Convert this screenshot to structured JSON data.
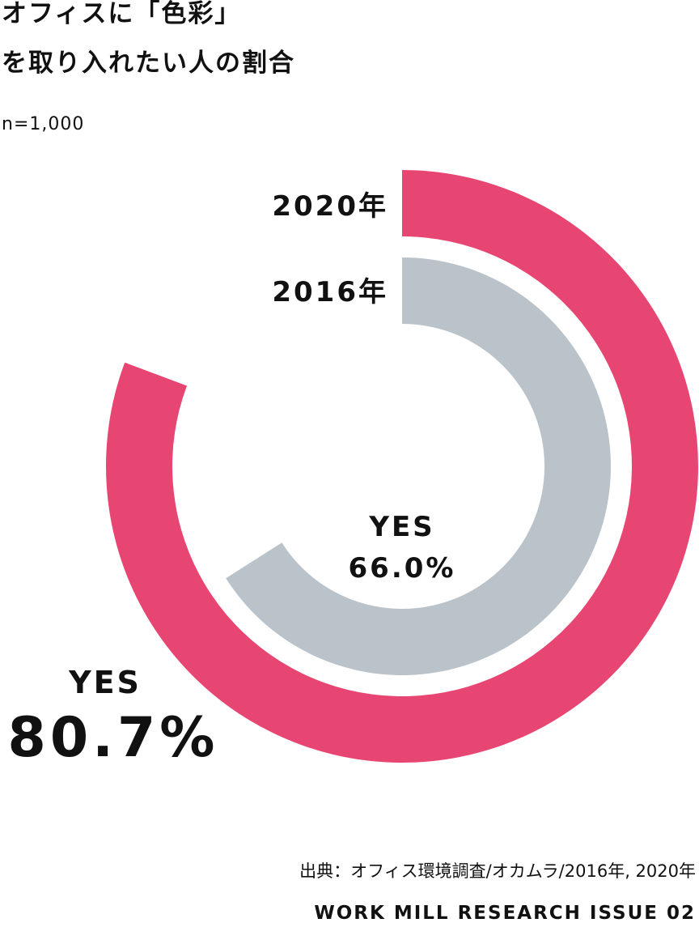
{
  "title": {
    "line1": "オフィスに「色彩」",
    "line2": "を取り入れたい人の割合"
  },
  "sample_size": "n=1,000",
  "source": "出典：オフィス環境調査/オカムラ/2016年, 2020年",
  "footer": "WORK MILL RESEARCH ISSUE 02",
  "colors": {
    "2020": "#e84672",
    "2016": "#bac3ca"
  },
  "chart_data": {
    "type": "radial_bar",
    "unit": "%",
    "max": 100,
    "series": [
      {
        "name": "2020年",
        "category": "YES",
        "value": 80.7,
        "label": "80.7%"
      },
      {
        "name": "2016年",
        "category": "YES",
        "value": 66.0,
        "label": "66.0%"
      }
    ]
  }
}
